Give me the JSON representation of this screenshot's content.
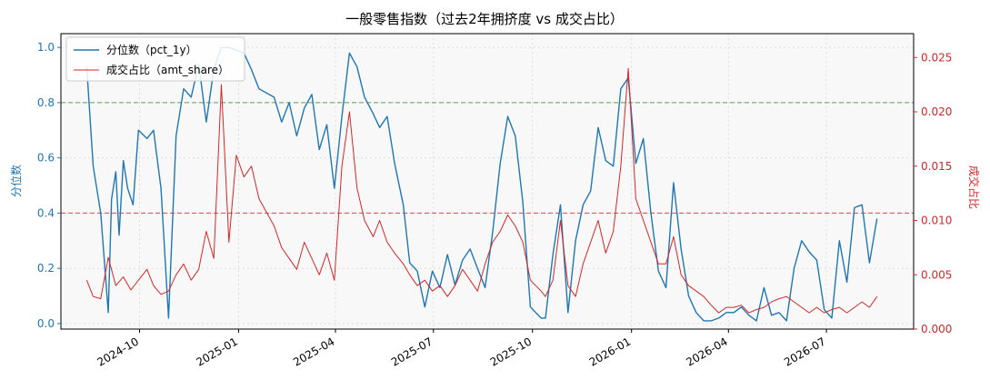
{
  "chart_data": {
    "type": "line",
    "title": "一般零售指数（过去2年拥挤度 vs 成交占比）",
    "xlabel": "",
    "y_left_label": "分位数",
    "y_right_label": "成交占比",
    "x_tick_labels": [
      "2024-10",
      "2025-01",
      "2025-04",
      "2025-07",
      "2025-10",
      "2026-01",
      "2026-04",
      "2026-07"
    ],
    "x_ticks": [
      "2024-10-01",
      "2025-01-01",
      "2025-04-01",
      "2025-07-01",
      "2025-10-01",
      "2026-01-01",
      "2026-04-01",
      "2026-07-01"
    ],
    "xlim": [
      "2024-07-20",
      "2026-09-20"
    ],
    "ylim_left": [
      -0.02,
      1.05
    ],
    "ylim_right": [
      0,
      0.0272
    ],
    "y_left_ticks": [
      0.0,
      0.2,
      0.4,
      0.6,
      0.8,
      1.0
    ],
    "y_left_tick_labels": [
      "0.0",
      "0.2",
      "0.4",
      "0.6",
      "0.8",
      "1.0"
    ],
    "y_right_ticks": [
      0.0,
      0.005,
      0.01,
      0.015,
      0.02,
      0.025
    ],
    "y_right_tick_labels": [
      "0.000",
      "0.005",
      "0.010",
      "0.015",
      "0.020",
      "0.025"
    ],
    "grid": true,
    "legend_position": "top-left",
    "reference_lines": [
      {
        "axis": "left",
        "value": 0.8,
        "color": "#4a9a3a",
        "style": "dashed"
      },
      {
        "axis": "left",
        "value": 0.4,
        "color": "#d63b3b",
        "style": "dashed"
      }
    ],
    "series": [
      {
        "name": "分位数（pct_1y）",
        "axis": "left",
        "color": "#1f77b4",
        "x": [
          "2024-08-13",
          "2024-08-19",
          "2024-08-26",
          "2024-09-02",
          "2024-09-05",
          "2024-09-09",
          "2024-09-12",
          "2024-09-16",
          "2024-09-20",
          "2024-09-25",
          "2024-09-30",
          "2024-10-08",
          "2024-10-14",
          "2024-10-21",
          "2024-10-28",
          "2024-11-04",
          "2024-11-11",
          "2024-11-18",
          "2024-11-25",
          "2024-12-02",
          "2024-12-09",
          "2024-12-16",
          "2024-12-23",
          "2024-12-30",
          "2025-01-06",
          "2025-01-13",
          "2025-01-20",
          "2025-02-03",
          "2025-02-10",
          "2025-02-17",
          "2025-02-24",
          "2025-03-03",
          "2025-03-10",
          "2025-03-17",
          "2025-03-24",
          "2025-03-31",
          "2025-04-07",
          "2025-04-14",
          "2025-04-21",
          "2025-04-28",
          "2025-05-06",
          "2025-05-12",
          "2025-05-19",
          "2025-05-26",
          "2025-06-03",
          "2025-06-09",
          "2025-06-16",
          "2025-06-23",
          "2025-06-30",
          "2025-07-07",
          "2025-07-14",
          "2025-07-21",
          "2025-07-28",
          "2025-08-04",
          "2025-08-11",
          "2025-08-18",
          "2025-08-25",
          "2025-09-01",
          "2025-09-08",
          "2025-09-15",
          "2025-09-22",
          "2025-09-29",
          "2025-10-09",
          "2025-10-13",
          "2025-10-20",
          "2025-10-27",
          "2025-11-03",
          "2025-11-10",
          "2025-11-17",
          "2025-11-24",
          "2025-12-01",
          "2025-12-08",
          "2025-12-15",
          "2025-12-22",
          "2025-12-29",
          "2026-01-05",
          "2026-01-12",
          "2026-01-19",
          "2026-01-26",
          "2026-02-02",
          "2026-02-09",
          "2026-02-16",
          "2026-02-23",
          "2026-03-02",
          "2026-03-09",
          "2026-03-16",
          "2026-03-23",
          "2026-03-30",
          "2026-04-06",
          "2026-04-13",
          "2026-04-20",
          "2026-04-27",
          "2026-05-04",
          "2026-05-11",
          "2026-05-18",
          "2026-05-25",
          "2026-06-01",
          "2026-06-08",
          "2026-06-15",
          "2026-06-22",
          "2026-06-29",
          "2026-07-06",
          "2026-07-13",
          "2026-07-20",
          "2026-07-27",
          "2026-08-03",
          "2026-08-10",
          "2026-08-17"
        ],
        "values": [
          0.93,
          0.57,
          0.4,
          0.04,
          0.45,
          0.55,
          0.32,
          0.59,
          0.49,
          0.43,
          0.7,
          0.67,
          0.7,
          0.49,
          0.02,
          0.68,
          0.85,
          0.82,
          0.94,
          0.73,
          0.92,
          1.0,
          1.0,
          0.99,
          0.98,
          0.92,
          0.85,
          0.82,
          0.73,
          0.8,
          0.68,
          0.78,
          0.83,
          0.63,
          0.72,
          0.49,
          0.75,
          0.98,
          0.93,
          0.82,
          0.76,
          0.71,
          0.75,
          0.58,
          0.43,
          0.22,
          0.19,
          0.06,
          0.19,
          0.13,
          0.25,
          0.14,
          0.23,
          0.27,
          0.2,
          0.13,
          0.33,
          0.58,
          0.75,
          0.68,
          0.44,
          0.06,
          0.02,
          0.02,
          0.25,
          0.43,
          0.04,
          0.3,
          0.43,
          0.48,
          0.71,
          0.59,
          0.57,
          0.85,
          0.89,
          0.58,
          0.67,
          0.4,
          0.19,
          0.13,
          0.51,
          0.27,
          0.1,
          0.04,
          0.01,
          0.01,
          0.02,
          0.04,
          0.04,
          0.06,
          0.03,
          0.01,
          0.13,
          0.03,
          0.04,
          0.01,
          0.2,
          0.3,
          0.26,
          0.23,
          0.05,
          0.02,
          0.3,
          0.15,
          0.42,
          0.43,
          0.22,
          0.38
        ]
      },
      {
        "name": "成交占比（amt_share）",
        "axis": "right",
        "color": "#d62728",
        "x": [
          "2024-08-13",
          "2024-08-19",
          "2024-08-26",
          "2024-09-02",
          "2024-09-09",
          "2024-09-16",
          "2024-09-23",
          "2024-09-30",
          "2024-10-08",
          "2024-10-14",
          "2024-10-21",
          "2024-10-28",
          "2024-11-04",
          "2024-11-11",
          "2024-11-18",
          "2024-11-25",
          "2024-12-02",
          "2024-12-09",
          "2024-12-16",
          "2024-12-23",
          "2024-12-30",
          "2025-01-06",
          "2025-01-13",
          "2025-01-20",
          "2025-02-03",
          "2025-02-10",
          "2025-02-17",
          "2025-02-24",
          "2025-03-03",
          "2025-03-10",
          "2025-03-17",
          "2025-03-24",
          "2025-03-31",
          "2025-04-07",
          "2025-04-14",
          "2025-04-21",
          "2025-04-28",
          "2025-05-06",
          "2025-05-12",
          "2025-05-19",
          "2025-05-26",
          "2025-06-03",
          "2025-06-09",
          "2025-06-16",
          "2025-06-23",
          "2025-06-30",
          "2025-07-07",
          "2025-07-14",
          "2025-07-21",
          "2025-07-28",
          "2025-08-04",
          "2025-08-11",
          "2025-08-18",
          "2025-08-25",
          "2025-09-01",
          "2025-09-08",
          "2025-09-15",
          "2025-09-22",
          "2025-09-29",
          "2025-10-09",
          "2025-10-13",
          "2025-10-20",
          "2025-10-27",
          "2025-11-03",
          "2025-11-10",
          "2025-11-17",
          "2025-11-24",
          "2025-12-01",
          "2025-12-08",
          "2025-12-15",
          "2025-12-22",
          "2025-12-29",
          "2026-01-05",
          "2026-01-12",
          "2026-01-19",
          "2026-01-26",
          "2026-02-02",
          "2026-02-09",
          "2026-02-16",
          "2026-02-23",
          "2026-03-02",
          "2026-03-09",
          "2026-03-16",
          "2026-03-23",
          "2026-03-30",
          "2026-04-06",
          "2026-04-13",
          "2026-04-20",
          "2026-04-27",
          "2026-05-04",
          "2026-05-11",
          "2026-05-18",
          "2026-05-25",
          "2026-06-01",
          "2026-06-08",
          "2026-06-15",
          "2026-06-22",
          "2026-06-29",
          "2026-07-06",
          "2026-07-13",
          "2026-07-20",
          "2026-07-27",
          "2026-08-03",
          "2026-08-10",
          "2026-08-17"
        ],
        "values": [
          0.0045,
          0.003,
          0.0028,
          0.0066,
          0.004,
          0.0048,
          0.0036,
          0.0045,
          0.0055,
          0.004,
          0.0032,
          0.0035,
          0.005,
          0.006,
          0.0045,
          0.0055,
          0.009,
          0.0065,
          0.0225,
          0.008,
          0.016,
          0.014,
          0.015,
          0.012,
          0.0095,
          0.0075,
          0.0065,
          0.0055,
          0.008,
          0.0065,
          0.005,
          0.007,
          0.0045,
          0.015,
          0.02,
          0.013,
          0.01,
          0.0085,
          0.01,
          0.008,
          0.007,
          0.006,
          0.005,
          0.004,
          0.0045,
          0.0035,
          0.004,
          0.003,
          0.004,
          0.0055,
          0.0045,
          0.0035,
          0.006,
          0.008,
          0.009,
          0.0105,
          0.0095,
          0.008,
          0.0045,
          0.0035,
          0.003,
          0.0045,
          0.01,
          0.004,
          0.003,
          0.006,
          0.008,
          0.01,
          0.007,
          0.009,
          0.015,
          0.024,
          0.012,
          0.01,
          0.008,
          0.006,
          0.006,
          0.0085,
          0.005,
          0.004,
          0.0035,
          0.003,
          0.0022,
          0.0015,
          0.002,
          0.002,
          0.0022,
          0.0015,
          0.0018,
          0.002,
          0.0025,
          0.0028,
          0.003,
          0.0025,
          0.002,
          0.0015,
          0.002,
          0.0015,
          0.0018,
          0.002,
          0.0015,
          0.002,
          0.0025,
          0.002,
          0.003
        ]
      }
    ]
  }
}
